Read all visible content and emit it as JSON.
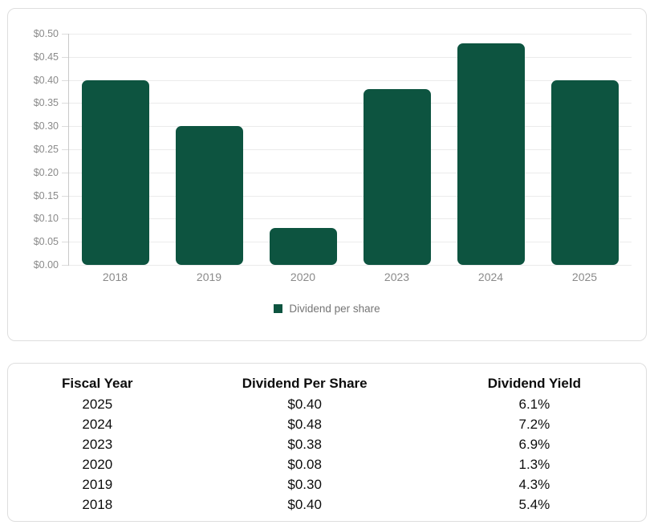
{
  "chart_data": {
    "type": "bar",
    "title": "",
    "xlabel": "",
    "ylabel": "",
    "categories": [
      "2018",
      "2019",
      "2020",
      "2023",
      "2024",
      "2025"
    ],
    "series": [
      {
        "name": "Dividend per share",
        "values": [
          0.4,
          0.3,
          0.08,
          0.38,
          0.48,
          0.4
        ]
      }
    ],
    "ylim": [
      0,
      0.5
    ],
    "ytick_step": 0.05,
    "ytick_labels": [
      "$0.50",
      "$0.45",
      "$0.40",
      "$0.35",
      "$0.30",
      "$0.25",
      "$0.20",
      "$0.15",
      "$0.10",
      "$0.05",
      "$0.00"
    ],
    "grid": true,
    "legend": {
      "label": "Dividend per share",
      "position": "bottom"
    },
    "colors": {
      "bar": "#0d5440",
      "grid_line": "#ebebeb",
      "axis_line": "#c9c9c9",
      "tick_label": "#8a8a8a",
      "legend_text": "#757575",
      "card_border": "#dedede",
      "background": "#ffffff"
    }
  },
  "table": {
    "headers": [
      "Fiscal Year",
      "Dividend Per Share",
      "Dividend Yield"
    ],
    "col_widths": [
      "28%",
      "37%",
      "35%"
    ],
    "rows": [
      [
        "2025",
        "$0.40",
        "6.1%"
      ],
      [
        "2024",
        "$0.48",
        "7.2%"
      ],
      [
        "2023",
        "$0.38",
        "6.9%"
      ],
      [
        "2020",
        "$0.08",
        "1.3%"
      ],
      [
        "2019",
        "$0.30",
        "4.3%"
      ],
      [
        "2018",
        "$0.40",
        "5.4%"
      ]
    ]
  }
}
